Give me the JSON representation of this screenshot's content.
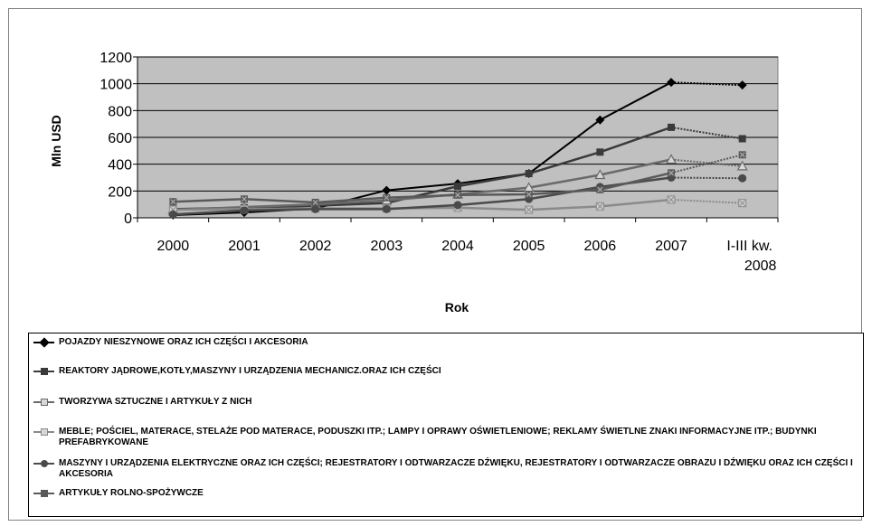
{
  "chart_data": {
    "type": "line",
    "title": "",
    "xlabel": "Rok",
    "ylabel": "Mln USD",
    "ylim": [
      0,
      1200
    ],
    "yticks": [
      0,
      200,
      400,
      600,
      800,
      1000,
      1200
    ],
    "categories": [
      "2000",
      "2001",
      "2002",
      "2003",
      "2004",
      "2005",
      "2006",
      "2007",
      "I-III kw. 2008"
    ],
    "grid": true,
    "plot_background": "#c0c0c0",
    "legend_position": "bottom",
    "series": [
      {
        "name": "POJAZDY NIESZYNOWE ORAZ ICH CZĘŚCI I AKCESORIA",
        "values": [
          20,
          40,
          70,
          205,
          255,
          330,
          730,
          1010,
          990
        ],
        "color": "#000000",
        "marker": "diamond"
      },
      {
        "name": "REAKTORY JĄDROWE,KOTŁY,MASZYNY I URZĄDZENIA MECHANICZ.ORAZ ICH CZĘŚCI",
        "values": [
          65,
          75,
          90,
          110,
          235,
          330,
          490,
          675,
          590
        ],
        "color": "#3a3a3a",
        "marker": "square"
      },
      {
        "name": "TWORZYWA SZTUCZNE I ARTYKUŁY Z NICH",
        "values": [
          60,
          80,
          100,
          130,
          175,
          225,
          320,
          435,
          385
        ],
        "color": "#6a6a6a",
        "marker": "triangle"
      },
      {
        "name": "MEBLE; POŚCIEL, MATERACE, STELAŻE POD MATERACE, PODUSZKI ITP.; LAMPY I OPRAWY OŚWIETLENIOWE; REKLAMY ŚWIETLNE ZNAKI INFORMACYJNE ITP.; BUDYNKI PREFABRYKOWANE",
        "values": [
          60,
          65,
          70,
          70,
          75,
          60,
          85,
          135,
          110
        ],
        "color": "#8a8a8a",
        "marker": "square-x"
      },
      {
        "name": "MASZYNY I URZĄDZENIA ELEKTRYCZNE ORAZ ICH CZĘŚCI; REJESTRATORY I ODTWARZACZE DŹWIĘKU, REJESTRATORY I ODTWARZACZE OBRAZU I DŹWIĘKU ORAZ ICH CZĘŚCI I AKCESORIA",
        "values": [
          25,
          55,
          65,
          65,
          95,
          140,
          230,
          300,
          295
        ],
        "color": "#4a4a4a",
        "marker": "circle"
      },
      {
        "name": "ARTYKUŁY ROLNO-SPOŻYWCZE",
        "values": [
          120,
          140,
          115,
          150,
          170,
          175,
          210,
          335,
          470
        ],
        "color": "#5a5a5a",
        "marker": "x-square"
      }
    ]
  }
}
